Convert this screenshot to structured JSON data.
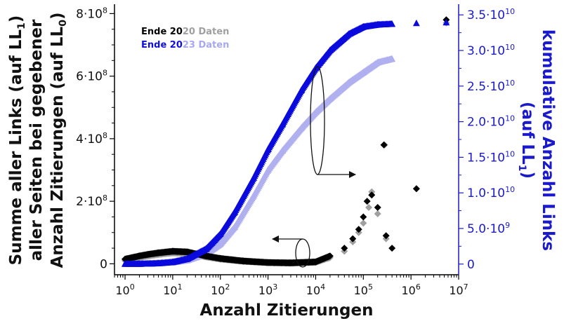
{
  "chart_data": {
    "type": "scatter",
    "title": "",
    "xlabel": "Anzahl Zitierungen",
    "xscale": "log",
    "xlim": [
      0.6,
      10000000
    ],
    "x_ticks": [
      {
        "value": 1,
        "base": "10",
        "exp": "0"
      },
      {
        "value": 10,
        "base": "10",
        "exp": "1"
      },
      {
        "value": 100,
        "base": "10",
        "exp": "2"
      },
      {
        "value": 1000,
        "base": "10",
        "exp": "3"
      },
      {
        "value": 10000,
        "base": "10",
        "exp": "4"
      },
      {
        "value": 100000,
        "base": "10",
        "exp": "5"
      },
      {
        "value": 1000000,
        "base": "10",
        "exp": "6"
      },
      {
        "value": 10000000,
        "base": "10",
        "exp": "7"
      }
    ],
    "y_left": {
      "label_lines": [
        {
          "text": "Summe aller Links (auf LL",
          "sub": "1",
          "tail": ")"
        },
        {
          "text": "aller Seiten bei gegebener",
          "sub": "",
          "tail": ""
        },
        {
          "text": "Anzahl Zitierungen (auf LL",
          "sub": "0",
          "tail": ")"
        }
      ],
      "lim": [
        -35000000,
        830000000
      ],
      "ticks": [
        {
          "value": 0,
          "label": "0"
        },
        {
          "value": 200000000,
          "label": "2·10",
          "exp": "8"
        },
        {
          "value": 400000000,
          "label": "4·10",
          "exp": "8"
        },
        {
          "value": 600000000,
          "label": "6·10",
          "exp": "8"
        },
        {
          "value": 800000000,
          "label": "8·10",
          "exp": "8"
        }
      ]
    },
    "y_right": {
      "label_lines": [
        {
          "text": "kumulative Anzahl Links",
          "sub": "",
          "tail": ""
        },
        {
          "text": "(auf LL",
          "sub": "1",
          "tail": ")"
        }
      ],
      "color": "#1a1acc",
      "lim": [
        -1500000000,
        36500000000
      ],
      "ticks": [
        {
          "value": 0,
          "label": "0"
        },
        {
          "value": 5000000000,
          "label": "5.0·10",
          "exp": "9"
        },
        {
          "value": 10000000000,
          "label": "1.0·10",
          "exp": "10"
        },
        {
          "value": 15000000000,
          "label": "1.5·10",
          "exp": "10"
        },
        {
          "value": 20000000000,
          "label": "2.0·10",
          "exp": "10"
        },
        {
          "value": 25000000000,
          "label": "2.5·10",
          "exp": "10"
        },
        {
          "value": 30000000000,
          "label": "3.0·10",
          "exp": "10"
        },
        {
          "value": 35000000000,
          "label": "3.5·10",
          "exp": "10"
        }
      ]
    },
    "legend": {
      "placement": "top-left",
      "entries": [
        {
          "prefix": "Ende 20",
          "suffix": "20 Daten",
          "prefix_color": "#000000",
          "suffix_color": "#a0a0a0"
        },
        {
          "prefix": "Ende 20",
          "suffix": "23 Daten",
          "prefix_color": "#1010dd",
          "suffix_color": "#a8a8f0"
        }
      ]
    },
    "series": [
      {
        "name": "Ende 2020 Daten",
        "axis": "left",
        "marker": "diamond",
        "color": "#a0a0a0",
        "points": [
          [
            1,
            10000000
          ],
          [
            2,
            20000000
          ],
          [
            3,
            25000000
          ],
          [
            5,
            30000000
          ],
          [
            10,
            35000000
          ],
          [
            20,
            33000000
          ],
          [
            50,
            22000000
          ],
          [
            100,
            15000000
          ],
          [
            300,
            8000000
          ],
          [
            1000,
            4000000
          ],
          [
            3000,
            2000000
          ],
          [
            10000,
            5000000
          ],
          [
            20000,
            20000000
          ],
          [
            40000,
            40000000
          ],
          [
            60000,
            70000000
          ],
          [
            80000,
            100000000
          ],
          [
            100000,
            130000000
          ],
          [
            130000,
            180000000
          ],
          [
            150000,
            230000000
          ],
          [
            200000,
            160000000
          ],
          [
            280000,
            380000000
          ],
          [
            300000,
            80000000
          ],
          [
            1300000,
            240000000
          ],
          [
            5500000,
            770000000
          ]
        ]
      },
      {
        "name": "Ende 2020 Daten (kumulativ)",
        "axis": "right",
        "marker": "triangle",
        "color": "#b0b0f0",
        "points": [
          [
            1,
            0
          ],
          [
            2,
            0
          ],
          [
            3,
            20000000
          ],
          [
            5,
            60000000
          ],
          [
            10,
            200000000
          ],
          [
            20,
            500000000
          ],
          [
            50,
            1400000000
          ],
          [
            100,
            2800000000
          ],
          [
            200,
            5200000000
          ],
          [
            500,
            9600000000
          ],
          [
            1000,
            13200000000
          ],
          [
            2000,
            15900000000
          ],
          [
            5000,
            19100000000
          ],
          [
            10000,
            21300000000
          ],
          [
            20000,
            23200000000
          ],
          [
            50000,
            25500000000
          ],
          [
            100000,
            26900000000
          ],
          [
            200000,
            28300000000
          ],
          [
            400000,
            28800000000
          ]
        ]
      },
      {
        "name": "Ende 2023 Daten",
        "axis": "left",
        "marker": "diamond",
        "color": "#000000",
        "points": [
          [
            1,
            15000000
          ],
          [
            2,
            25000000
          ],
          [
            3,
            30000000
          ],
          [
            5,
            35000000
          ],
          [
            10,
            40000000
          ],
          [
            20,
            38000000
          ],
          [
            50,
            25000000
          ],
          [
            100,
            17000000
          ],
          [
            300,
            9000000
          ],
          [
            1000,
            4000000
          ],
          [
            3000,
            3000000
          ],
          [
            10000,
            6000000
          ],
          [
            20000,
            25000000
          ],
          [
            40000,
            50000000
          ],
          [
            60000,
            80000000
          ],
          [
            80000,
            110000000
          ],
          [
            100000,
            150000000
          ],
          [
            120000,
            200000000
          ],
          [
            150000,
            220000000
          ],
          [
            200000,
            180000000
          ],
          [
            270000,
            380000000
          ],
          [
            300000,
            90000000
          ],
          [
            400000,
            50000000
          ],
          [
            1300000,
            240000000
          ],
          [
            5500000,
            780000000
          ]
        ]
      },
      {
        "name": "Ende 2023 Daten (kumulativ)",
        "axis": "right",
        "marker": "triangle",
        "color": "#0a0add",
        "points": [
          [
            1,
            0
          ],
          [
            2,
            0
          ],
          [
            3,
            20000000
          ],
          [
            5,
            80000000
          ],
          [
            10,
            250000000
          ],
          [
            20,
            700000000
          ],
          [
            50,
            2100000000
          ],
          [
            100,
            4200000000
          ],
          [
            200,
            7300000000
          ],
          [
            500,
            12100000000
          ],
          [
            1000,
            16100000000
          ],
          [
            2000,
            19600000000
          ],
          [
            5000,
            24400000000
          ],
          [
            10000,
            27500000000
          ],
          [
            20000,
            30000000000
          ],
          [
            50000,
            32300000000
          ],
          [
            100000,
            33300000000
          ],
          [
            200000,
            33600000000
          ],
          [
            400000,
            33700000000
          ],
          [
            1300000,
            33800000000
          ],
          [
            5500000,
            33900000000
          ]
        ]
      }
    ],
    "annotations": [
      {
        "type": "ellipse-arrow",
        "direction": "right",
        "points_to_axis": "right"
      },
      {
        "type": "ellipse-arrow",
        "direction": "left",
        "points_to_axis": "left"
      }
    ]
  }
}
